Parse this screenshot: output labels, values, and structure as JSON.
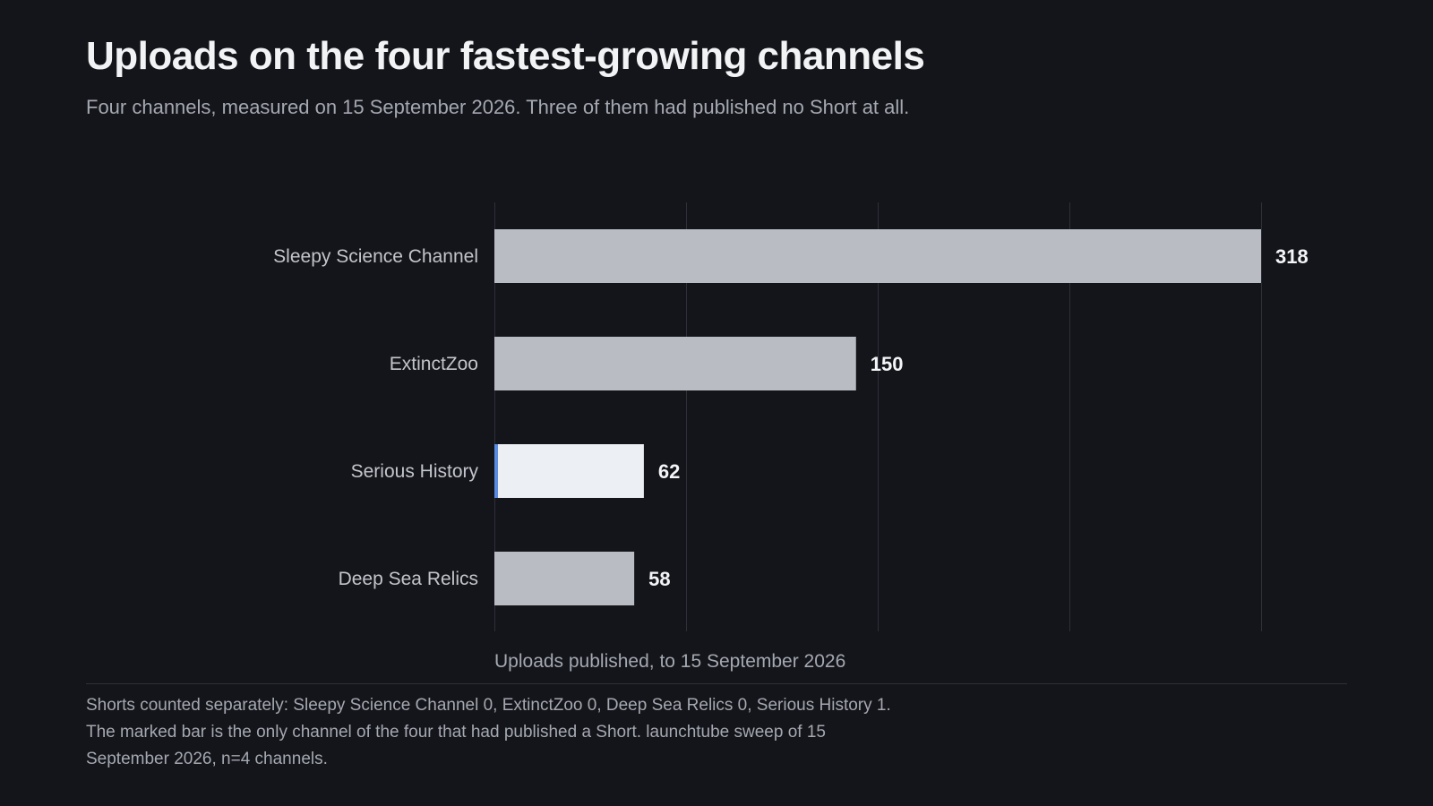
{
  "header": {
    "title": "Uploads on the four fastest-growing channels",
    "subtitle": "Four channels, measured on 15 September 2026. Three of them had published no Short at all."
  },
  "chart_data": {
    "type": "bar",
    "orientation": "horizontal",
    "categories": [
      "Sleepy Science Channel",
      "ExtinctZoo",
      "Serious History",
      "Deep Sea Relics"
    ],
    "values": [
      318,
      150,
      62,
      58
    ],
    "highlighted_category": "Serious History",
    "xlabel": "Uploads published, to 15 September 2026",
    "ylabel": "",
    "xlim": [
      0,
      318
    ],
    "gridlines": [
      0,
      79.5,
      159,
      238.5,
      318
    ],
    "grid": true,
    "colors": {
      "bar": "#b9bcc3",
      "highlight_bar": "#eceff3",
      "highlight_marker": "#5b8be0",
      "gridline": "#2e3038"
    }
  },
  "footer": {
    "note_lines": [
      "Shorts counted separately: Sleepy Science Channel 0, ExtinctZoo 0, Deep Sea Relics 0, Serious History 1.",
      "The marked bar is the only channel of the four that had published a Short. launchtube sweep of 15",
      "September 2026, n=4 channels."
    ]
  }
}
